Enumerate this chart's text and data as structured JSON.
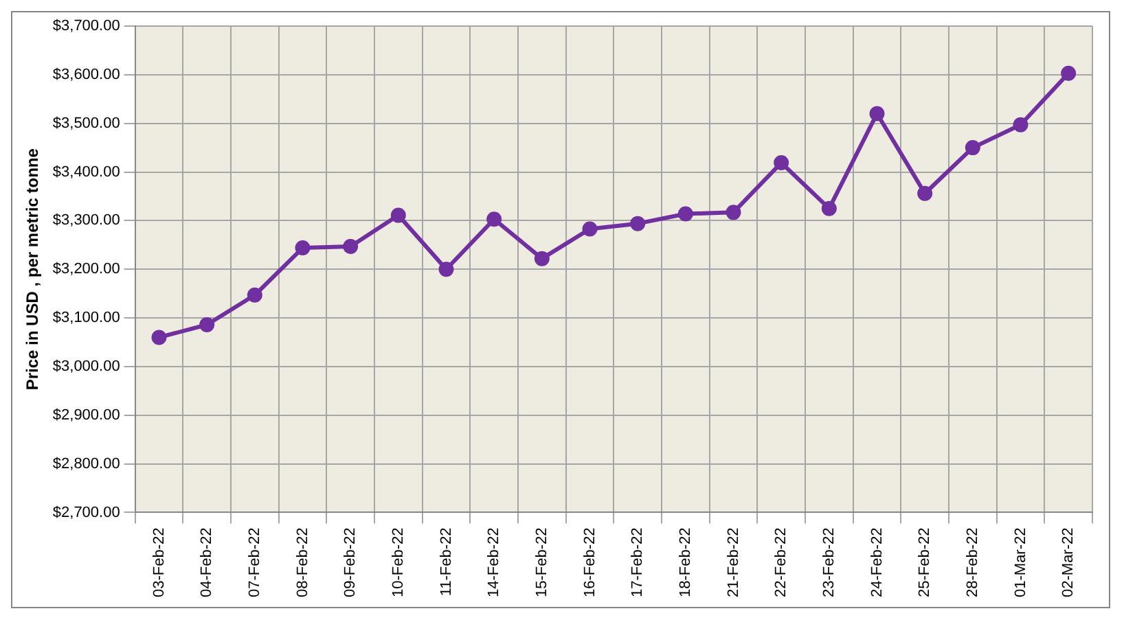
{
  "chart_data": {
    "type": "line",
    "ylabel": "Price in USD , per metric tonne",
    "categories": [
      "03-Feb-22",
      "04-Feb-22",
      "07-Feb-22",
      "08-Feb-22",
      "09-Feb-22",
      "10-Feb-22",
      "11-Feb-22",
      "14-Feb-22",
      "15-Feb-22",
      "16-Feb-22",
      "17-Feb-22",
      "18-Feb-22",
      "21-Feb-22",
      "22-Feb-22",
      "23-Feb-22",
      "24-Feb-22",
      "25-Feb-22",
      "28-Feb-22",
      "01-Mar-22",
      "02-Mar-22"
    ],
    "series": [
      {
        "color": "#7030a0",
        "values": [
          3060,
          3086,
          3147,
          3244,
          3247,
          3311,
          3200,
          3303,
          3222,
          3283,
          3294,
          3314,
          3317,
          3419,
          3325,
          3520,
          3356,
          3450,
          3497,
          3603
        ]
      }
    ],
    "ylim": [
      2700,
      3700
    ],
    "yticks": [
      {
        "value": 2700,
        "label": "$2,700.00"
      },
      {
        "value": 2800,
        "label": "$2,800.00"
      },
      {
        "value": 2900,
        "label": "$2,900.00"
      },
      {
        "value": 3000,
        "label": "$3,000.00"
      },
      {
        "value": 3100,
        "label": "$3,100.00"
      },
      {
        "value": 3200,
        "label": "$3,200.00"
      },
      {
        "value": 3300,
        "label": "$3,300.00"
      },
      {
        "value": 3400,
        "label": "$3,400.00"
      },
      {
        "value": 3500,
        "label": "$3,500.00"
      },
      {
        "value": 3600,
        "label": "$3,600.00"
      },
      {
        "value": 3700,
        "label": "$3,700.00"
      }
    ],
    "grid": true,
    "legend": false,
    "marker": "circle",
    "line_style": "solid"
  }
}
